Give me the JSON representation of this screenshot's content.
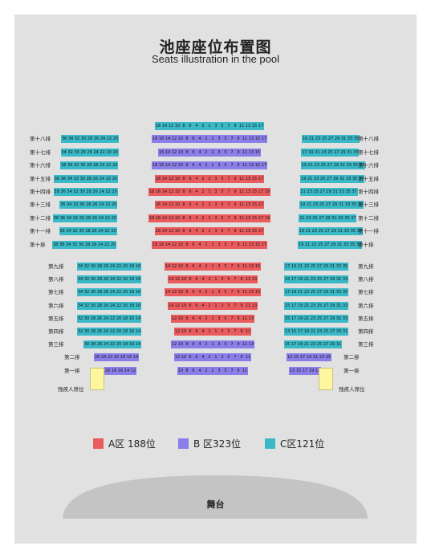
{
  "title": "池座座位布置图",
  "subtitle": "Seats illustration in the pool",
  "stage_label": "舞台",
  "accessible_label": "残疾人席位",
  "legend": [
    {
      "zone": "A",
      "label": "A区 188位",
      "color": "#ea5b5d"
    },
    {
      "zone": "B",
      "label": "B 区323位",
      "color": "#8b7ee8"
    },
    {
      "zone": "C",
      "label": "C区121位",
      "color": "#3ab9c7"
    }
  ],
  "upper_rows": [
    {
      "label": "",
      "center": {
        "zone": "C",
        "seats": [
          "16",
          "14",
          "12",
          "10",
          "8",
          "6",
          "4",
          "2",
          "1",
          "3",
          "5",
          "7",
          "9",
          "11",
          "13",
          "15",
          "17"
        ]
      }
    },
    {
      "label": "第十八排",
      "left": {
        "zone": "C",
        "seats": [
          "36",
          "34",
          "32",
          "30",
          "28",
          "26",
          "24",
          "22",
          "20"
        ]
      },
      "center": {
        "zone": "B",
        "seats": [
          "18",
          "16",
          "14",
          "12",
          "10",
          "8",
          "6",
          "4",
          "2",
          "1",
          "3",
          "5",
          "7",
          "9",
          "11",
          "13",
          "15",
          "17"
        ]
      },
      "right": {
        "zone": "C",
        "seats": [
          "19",
          "21",
          "23",
          "25",
          "27",
          "29",
          "31",
          "33",
          "35"
        ]
      }
    },
    {
      "label": "第十七排",
      "left": {
        "zone": "C",
        "seats": [
          "34",
          "32",
          "30",
          "28",
          "26",
          "24",
          "22",
          "20",
          "18"
        ]
      },
      "center": {
        "zone": "B",
        "seats": [
          "16",
          "14",
          "12",
          "10",
          "8",
          "6",
          "4",
          "2",
          "1",
          "3",
          "5",
          "7",
          "9",
          "11",
          "13",
          "15"
        ]
      },
      "right": {
        "zone": "C",
        "seats": [
          "17",
          "19",
          "21",
          "23",
          "25",
          "27",
          "29",
          "31",
          "33"
        ]
      }
    },
    {
      "label": "第十六排",
      "left": {
        "zone": "C",
        "seats": [
          "36",
          "34",
          "32",
          "30",
          "28",
          "26",
          "24",
          "22",
          "20"
        ]
      },
      "center": {
        "zone": "B",
        "seats": [
          "18",
          "16",
          "14",
          "12",
          "10",
          "8",
          "6",
          "4",
          "2",
          "1",
          "3",
          "5",
          "7",
          "9",
          "11",
          "13",
          "15",
          "17"
        ]
      },
      "right": {
        "zone": "C",
        "seats": [
          "19",
          "21",
          "23",
          "25",
          "27",
          "29",
          "31",
          "33",
          "35",
          "37"
        ]
      }
    },
    {
      "label": "第十五排",
      "left": {
        "zone": "C",
        "seats": [
          "38",
          "36",
          "34",
          "32",
          "30",
          "28",
          "26",
          "24",
          "22",
          "20"
        ]
      },
      "center": {
        "zone": "A",
        "seats": [
          "16",
          "14",
          "12",
          "10",
          "8",
          "6",
          "4",
          "2",
          "1",
          "3",
          "5",
          "7",
          "9",
          "11",
          "13",
          "15",
          "17"
        ]
      },
      "right": {
        "zone": "C",
        "seats": [
          "19",
          "21",
          "23",
          "25",
          "27",
          "29",
          "31",
          "33",
          "35",
          "37"
        ]
      }
    },
    {
      "label": "第十四排",
      "left": {
        "zone": "C",
        "seats": [
          "38",
          "36",
          "34",
          "32",
          "30",
          "28",
          "26",
          "24",
          "22",
          "20"
        ]
      },
      "center": {
        "zone": "A",
        "seats": [
          "18",
          "16",
          "14",
          "12",
          "10",
          "8",
          "6",
          "4",
          "2",
          "1",
          "3",
          "5",
          "7",
          "9",
          "11",
          "13",
          "15",
          "17",
          "19"
        ]
      },
      "right": {
        "zone": "C",
        "seats": [
          "21",
          "23",
          "25",
          "27",
          "29",
          "31",
          "33",
          "35",
          "37"
        ]
      }
    },
    {
      "label": "第十三排",
      "left": {
        "zone": "C",
        "seats": [
          "36",
          "34",
          "32",
          "30",
          "28",
          "26",
          "24",
          "22",
          "20"
        ]
      },
      "center": {
        "zone": "A",
        "seats": [
          "16",
          "14",
          "12",
          "10",
          "8",
          "6",
          "4",
          "2",
          "1",
          "3",
          "5",
          "7",
          "9",
          "11",
          "13",
          "15",
          "17"
        ]
      },
      "right": {
        "zone": "C",
        "seats": [
          "19",
          "21",
          "23",
          "25",
          "27",
          "29",
          "31",
          "33",
          "35",
          "37"
        ]
      }
    },
    {
      "label": "第十二排",
      "left": {
        "zone": "C",
        "seats": [
          "38",
          "36",
          "34",
          "32",
          "30",
          "28",
          "26",
          "24",
          "22",
          "20"
        ]
      },
      "center": {
        "zone": "A",
        "seats": [
          "18",
          "16",
          "14",
          "12",
          "10",
          "8",
          "6",
          "4",
          "2",
          "1",
          "3",
          "5",
          "7",
          "9",
          "11",
          "13",
          "15",
          "17",
          "19"
        ]
      },
      "right": {
        "zone": "C",
        "seats": [
          "21",
          "23",
          "25",
          "27",
          "29",
          "31",
          "33",
          "35",
          "37"
        ]
      }
    },
    {
      "label": "第十一排",
      "left": {
        "zone": "C",
        "seats": [
          "36",
          "34",
          "32",
          "30",
          "28",
          "26",
          "24",
          "22",
          "20"
        ]
      },
      "center": {
        "zone": "A",
        "seats": [
          "16",
          "14",
          "12",
          "10",
          "8",
          "6",
          "4",
          "2",
          "1",
          "3",
          "5",
          "7",
          "9",
          "11",
          "13",
          "15",
          "17"
        ]
      },
      "right": {
        "zone": "C",
        "seats": [
          "19",
          "21",
          "23",
          "25",
          "27",
          "29",
          "31",
          "33",
          "35",
          "37"
        ]
      }
    },
    {
      "label": "第十排",
      "left": {
        "zone": "C",
        "seats": [
          "38",
          "36",
          "34",
          "32",
          "30",
          "28",
          "26",
          "24",
          "22",
          "20"
        ]
      },
      "center": {
        "zone": "A",
        "seats": [
          "18",
          "16",
          "14",
          "12",
          "10",
          "8",
          "6",
          "4",
          "2",
          "1",
          "3",
          "5",
          "7",
          "9",
          "11",
          "13",
          "15",
          "17"
        ]
      },
      "right": {
        "zone": "C",
        "seats": [
          "19",
          "21",
          "23",
          "25",
          "27",
          "29",
          "31",
          "33",
          "35",
          "37"
        ]
      }
    }
  ],
  "lower_rows": [
    {
      "label": "第九排",
      "left": {
        "zone": "C",
        "seats": [
          "34",
          "32",
          "30",
          "28",
          "26",
          "24",
          "22",
          "20",
          "18",
          "16"
        ]
      },
      "center": {
        "zone": "A",
        "seats": [
          "14",
          "12",
          "10",
          "8",
          "6",
          "4",
          "2",
          "1",
          "3",
          "5",
          "7",
          "9",
          "11",
          "13",
          "15"
        ]
      },
      "right": {
        "zone": "C",
        "seats": [
          "17",
          "19",
          "21",
          "23",
          "25",
          "27",
          "29",
          "31",
          "33",
          "35"
        ]
      }
    },
    {
      "label": "第八排",
      "left": {
        "zone": "C",
        "seats": [
          "34",
          "32",
          "30",
          "28",
          "26",
          "24",
          "22",
          "20",
          "18",
          "16"
        ]
      },
      "center": {
        "zone": "A",
        "seats": [
          "14",
          "12",
          "10",
          "8",
          "6",
          "4",
          "2",
          "1",
          "3",
          "5",
          "7",
          "9",
          "11",
          "13"
        ]
      },
      "right": {
        "zone": "C",
        "seats": [
          "15",
          "17",
          "19",
          "21",
          "23",
          "25",
          "27",
          "29",
          "31",
          "33"
        ]
      }
    },
    {
      "label": "第七排",
      "left": {
        "zone": "C",
        "seats": [
          "34",
          "32",
          "30",
          "28",
          "26",
          "24",
          "22",
          "20",
          "18",
          "16"
        ]
      },
      "center": {
        "zone": "A",
        "seats": [
          "14",
          "12",
          "10",
          "8",
          "6",
          "4",
          "2",
          "1",
          "3",
          "5",
          "7",
          "9",
          "11",
          "13",
          "15"
        ]
      },
      "right": {
        "zone": "C",
        "seats": [
          "17",
          "19",
          "21",
          "23",
          "25",
          "27",
          "29",
          "31",
          "33",
          "35"
        ]
      }
    },
    {
      "label": "第六排",
      "left": {
        "zone": "C",
        "seats": [
          "34",
          "32",
          "30",
          "28",
          "26",
          "24",
          "22",
          "20",
          "18",
          "16"
        ]
      },
      "center": {
        "zone": "A",
        "seats": [
          "14",
          "12",
          "10",
          "8",
          "6",
          "4",
          "2",
          "1",
          "3",
          "5",
          "7",
          "9",
          "11",
          "13"
        ]
      },
      "right": {
        "zone": "C",
        "seats": [
          "15",
          "17",
          "19",
          "21",
          "23",
          "25",
          "27",
          "29",
          "31",
          "33"
        ]
      }
    },
    {
      "label": "第五排",
      "left": {
        "zone": "C",
        "seats": [
          "32",
          "30",
          "28",
          "26",
          "24",
          "22",
          "20",
          "18",
          "16",
          "14"
        ]
      },
      "center": {
        "zone": "A",
        "seats": [
          "12",
          "10",
          "8",
          "6",
          "4",
          "2",
          "1",
          "3",
          "5",
          "7",
          "9",
          "11",
          "13"
        ]
      },
      "right": {
        "zone": "C",
        "seats": [
          "15",
          "17",
          "19",
          "21",
          "23",
          "25",
          "27",
          "29",
          "31",
          "33"
        ]
      }
    },
    {
      "label": "第四排",
      "left": {
        "zone": "C",
        "seats": [
          "32",
          "30",
          "28",
          "26",
          "24",
          "22",
          "20",
          "18",
          "16",
          "14"
        ]
      },
      "center": {
        "zone": "A",
        "seats": [
          "12",
          "10",
          "8",
          "6",
          "4",
          "2",
          "1",
          "3",
          "5",
          "7",
          "9",
          "11"
        ]
      },
      "right": {
        "zone": "C",
        "seats": [
          "13",
          "15",
          "17",
          "19",
          "21",
          "23",
          "25",
          "27",
          "29",
          "31"
        ]
      }
    },
    {
      "label": "第三排",
      "left": {
        "zone": "C",
        "seats": [
          "30",
          "28",
          "26",
          "24",
          "22",
          "20",
          "18",
          "16",
          "14"
        ]
      },
      "center": {
        "zone": "B",
        "seats": [
          "12",
          "10",
          "8",
          "6",
          "4",
          "2",
          "1",
          "3",
          "5",
          "7",
          "9",
          "11",
          "13"
        ]
      },
      "right": {
        "zone": "C",
        "seats": [
          "15",
          "17",
          "19",
          "21",
          "23",
          "25",
          "27",
          "29",
          "31"
        ]
      }
    },
    {
      "label": "第二排",
      "left": {
        "zone": "B",
        "seats": [
          "26",
          "24",
          "22",
          "20",
          "18",
          "16",
          "14"
        ]
      },
      "center": {
        "zone": "B",
        "seats": [
          "12",
          "10",
          "8",
          "6",
          "4",
          "2",
          "1",
          "3",
          "5",
          "7",
          "9",
          "11"
        ]
      },
      "right": {
        "zone": "B",
        "seats": [
          "13",
          "15",
          "17",
          "19",
          "21",
          "23",
          "25"
        ]
      }
    },
    {
      "label": "第一排",
      "left": {
        "zone": "B",
        "seats": [
          "20",
          "18",
          "16",
          "14",
          "12"
        ]
      },
      "center": {
        "zone": "B",
        "seats": [
          "10",
          "8",
          "6",
          "4",
          "2",
          "1",
          "3",
          "5",
          "7",
          "9",
          "11"
        ]
      },
      "right": {
        "zone": "B",
        "seats": [
          "13",
          "15",
          "17",
          "19",
          "11"
        ]
      }
    }
  ]
}
